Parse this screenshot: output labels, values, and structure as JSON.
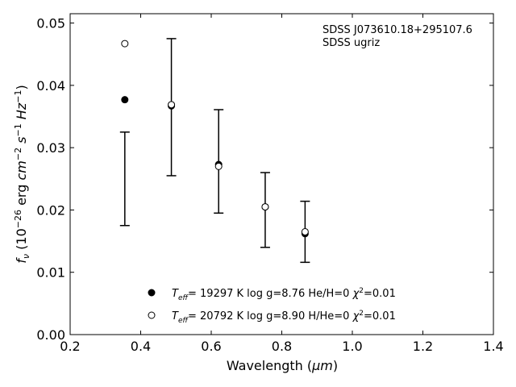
{
  "chart_data": {
    "type": "scatter",
    "annotations": [
      "SDSS J073610.18+295107.6",
      "SDSS ugriz"
    ],
    "xlabel": "Wavelength (μm)",
    "ylabel": "f_ν (10^-26 erg cm^-2 s^-1 Hz^-1)",
    "xlim": [
      0.2,
      1.4
    ],
    "ylim": [
      0.0,
      0.0515
    ],
    "xticks": [
      "0.2",
      "0.4",
      "0.6",
      "0.8",
      "1.0",
      "1.2",
      "1.4"
    ],
    "yticks": [
      "0.00",
      "0.01",
      "0.02",
      "0.03",
      "0.04",
      "0.05"
    ],
    "grid": false,
    "legend_position": "bottom-center",
    "observed": {
      "x": [
        0.355,
        0.487,
        0.621,
        0.753,
        0.866
      ],
      "y": [
        0.025,
        0.0365,
        0.0278,
        0.02,
        0.0165
      ],
      "yerr": [
        0.0075,
        0.011,
        0.0083,
        0.006,
        0.0049
      ]
    },
    "series": [
      {
        "name": "T_eff= 19297 K  log g=8.76  He/H=0  χ²=0.01",
        "marker": "filled-circle",
        "x": [
          0.355,
          0.487,
          0.621,
          0.753,
          0.866
        ],
        "y": [
          0.0377,
          0.0367,
          0.0273,
          0.0205,
          0.0162
        ]
      },
      {
        "name": "T_eff= 20792 K  log g=8.90  H/He=0  χ²=0.01",
        "marker": "open-circle",
        "x": [
          0.355,
          0.487,
          0.621,
          0.753,
          0.866
        ],
        "y": [
          0.0467,
          0.0369,
          0.027,
          0.0205,
          0.0165
        ]
      }
    ]
  }
}
